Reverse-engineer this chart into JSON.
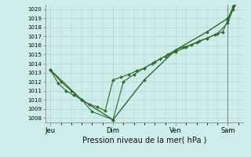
{
  "bg_color": "#ceecea",
  "grid_color": "#a8d8d2",
  "line_color": "#2d6b2d",
  "marker_color": "#2d6b2d",
  "ylabel_ticks": [
    1008,
    1009,
    1010,
    1011,
    1012,
    1013,
    1014,
    1015,
    1016,
    1017,
    1018,
    1019,
    1020
  ],
  "xtick_labels": [
    "Jeu",
    "Dim",
    "Ven",
    "Sam"
  ],
  "xtick_positions": [
    0,
    48,
    96,
    136
  ],
  "xlabel": "Pression niveau de la mer( hPa )",
  "series1_x": [
    0,
    6,
    12,
    18,
    24,
    30,
    36,
    42,
    48,
    54,
    60,
    66,
    72,
    78,
    84,
    90,
    96,
    102,
    108,
    114,
    120,
    126,
    132,
    136,
    140,
    144
  ],
  "series1_y": [
    1013.3,
    1011.8,
    1011.0,
    1010.5,
    1010.0,
    1009.5,
    1009.2,
    1008.8,
    1012.2,
    1012.5,
    1012.8,
    1013.2,
    1013.5,
    1014.0,
    1014.5,
    1015.0,
    1015.5,
    1015.8,
    1016.1,
    1016.5,
    1016.8,
    1017.2,
    1017.5,
    1018.8,
    1020.3,
    1021.0
  ],
  "series2_x": [
    0,
    8,
    16,
    24,
    32,
    48,
    56,
    64,
    72,
    80,
    88,
    96,
    104,
    112,
    120,
    128,
    136,
    140,
    144
  ],
  "series2_y": [
    1013.3,
    1012.0,
    1011.0,
    1010.0,
    1008.7,
    1007.8,
    1012.0,
    1012.8,
    1013.5,
    1014.2,
    1014.8,
    1015.3,
    1015.8,
    1016.3,
    1016.8,
    1017.3,
    1018.5,
    1020.0,
    1021.2
  ],
  "series3_x": [
    0,
    24,
    48,
    72,
    96,
    120,
    136,
    144
  ],
  "series3_y": [
    1013.3,
    1010.0,
    1007.8,
    1012.2,
    1015.5,
    1017.5,
    1019.0,
    1021.0
  ],
  "ylim": [
    1007.5,
    1020.5
  ],
  "xlim": [
    -4,
    148
  ],
  "vline_x": 136
}
